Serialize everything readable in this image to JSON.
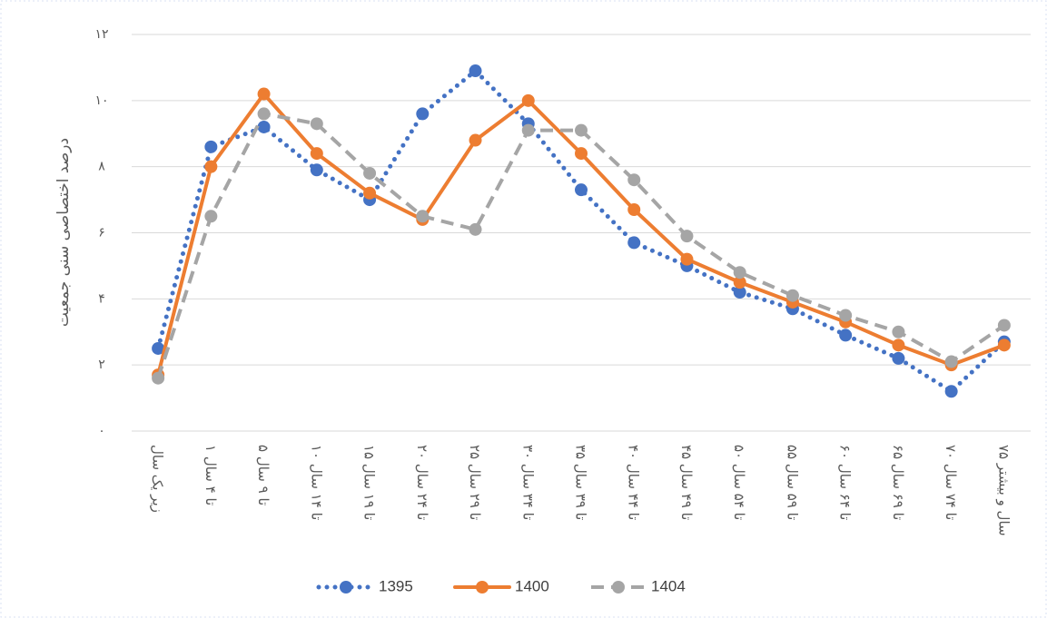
{
  "chart_data": {
    "type": "line",
    "y_label": "درصد اختصاصی سنی جمعیت",
    "categories": [
      "زیر یک سال",
      "۱ تا ۴ سال",
      "۵ تا ۹ سال",
      "۱۰ تا ۱۴ سال",
      "۱۵ تا ۱۹ سال",
      "۲۰ تا ۲۴ سال",
      "۲۵ تا ۲۹ سال",
      "۳۰ تا ۳۴ سال",
      "۳۵ تا ۳۹ سال",
      "۴۰ تا ۴۴ سال",
      "۴۵ تا ۴۹ سال",
      "۵۰ تا ۵۴ سال",
      "۵۵ تا ۵۹ سال",
      "۶۰ تا ۶۴ سال",
      "۶۵ تا ۶۹ سال",
      "۷۰ تا ۷۴ سال",
      "۷۵ سال و بیشتر"
    ],
    "series": [
      {
        "name": "1395",
        "color": "#4472c4",
        "style": "dotted",
        "values": [
          2.5,
          8.6,
          9.2,
          7.9,
          7.0,
          9.6,
          10.9,
          9.3,
          7.3,
          5.7,
          5.0,
          4.2,
          3.7,
          2.9,
          2.2,
          1.2,
          2.7
        ]
      },
      {
        "name": "1400",
        "color": "#ed7d31",
        "style": "solid",
        "values": [
          1.7,
          8.0,
          10.2,
          8.4,
          7.2,
          6.4,
          8.8,
          10.0,
          8.4,
          6.7,
          5.2,
          4.5,
          3.9,
          3.3,
          2.6,
          2.0,
          2.6
        ]
      },
      {
        "name": "1404",
        "color": "#a5a5a5",
        "style": "dashed",
        "values": [
          1.6,
          6.5,
          9.6,
          9.3,
          7.8,
          6.5,
          6.1,
          9.1,
          9.1,
          7.6,
          5.9,
          4.8,
          4.1,
          3.5,
          3.0,
          2.1,
          3.2
        ]
      }
    ],
    "ylim": [
      0,
      12
    ],
    "yticks": [
      {
        "value": 0,
        "label": "۰"
      },
      {
        "value": 2,
        "label": "۲"
      },
      {
        "value": 4,
        "label": "۴"
      },
      {
        "value": 6,
        "label": "۶"
      },
      {
        "value": 8,
        "label": "۸"
      },
      {
        "value": 10,
        "label": "۱۰"
      },
      {
        "value": 12,
        "label": "۱۲"
      }
    ],
    "grid": true,
    "legend": "bottom"
  }
}
